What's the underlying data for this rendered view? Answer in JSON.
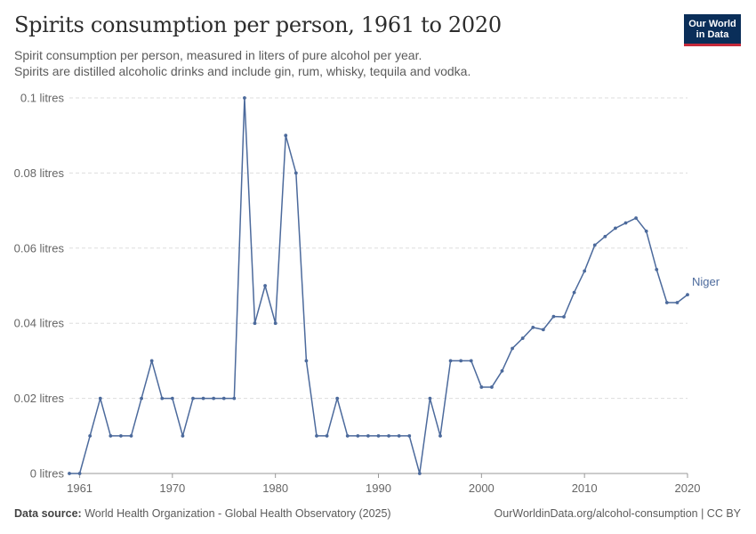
{
  "header": {
    "title": "Spirits consumption per person, 1961 to 2020",
    "subtitle_line1": "Spirit consumption per person, measured in liters of pure alcohol per year.",
    "subtitle_line2": "Spirits are distilled alcoholic drinks and include gin, rum, whisky, tequila and vodka."
  },
  "logo": {
    "line1": "Our World",
    "line2": "in Data"
  },
  "footer": {
    "source_label": "Data source:",
    "source_text": "World Health Organization - Global Health Observatory (2025)",
    "right_text": "OurWorldinData.org/alcohol-consumption | CC BY"
  },
  "colors": {
    "series": "#4c6a9c",
    "grid": "#dddddd",
    "axis": "#999999"
  },
  "chart_data": {
    "type": "line",
    "title": "Spirits consumption per person, 1961 to 2020",
    "xlabel": "",
    "ylabel": "",
    "xlim": [
      1960,
      2020
    ],
    "ylim": [
      0,
      0.1
    ],
    "y_ticks": [
      0,
      0.02,
      0.04,
      0.06,
      0.08,
      0.1
    ],
    "y_tick_labels": [
      "0 litres",
      "0.02 litres",
      "0.04 litres",
      "0.06 litres",
      "0.08 litres",
      "0.1 litres"
    ],
    "x_ticks": [
      1961,
      1970,
      1980,
      1990,
      2000,
      2010,
      2020
    ],
    "x_tick_labels": [
      "1961",
      "1970",
      "1980",
      "1990",
      "2000",
      "2010",
      "2020"
    ],
    "grid": true,
    "series": [
      {
        "name": "Niger",
        "x": [
          1960,
          1961,
          1962,
          1963,
          1964,
          1965,
          1966,
          1967,
          1968,
          1969,
          1970,
          1971,
          1972,
          1973,
          1974,
          1975,
          1976,
          1977,
          1978,
          1979,
          1980,
          1981,
          1982,
          1983,
          1984,
          1985,
          1986,
          1987,
          1988,
          1989,
          1990,
          1991,
          1992,
          1993,
          1994,
          1995,
          1996,
          1997,
          1998,
          1999,
          2000,
          2001,
          2002,
          2003,
          2004,
          2005,
          2006,
          2007,
          2008,
          2009,
          2010,
          2011,
          2012,
          2013,
          2014,
          2015,
          2016,
          2017,
          2018,
          2019,
          2020
        ],
        "values": [
          0,
          0,
          0.01,
          0.02,
          0.01,
          0.01,
          0.01,
          0.02,
          0.03,
          0.02,
          0.02,
          0.01,
          0.02,
          0.02,
          0.02,
          0.02,
          0.02,
          0.1,
          0.04,
          0.05,
          0.04,
          0.09,
          0.08,
          0.03,
          0.01,
          0.01,
          0.02,
          0.01,
          0.01,
          0.01,
          0.01,
          0.01,
          0.01,
          0.01,
          0,
          0.02,
          0.01,
          0.03,
          0.03,
          0.03,
          0.023,
          0.023,
          0.0273,
          0.0333,
          0.036,
          0.0389,
          0.0383,
          0.0418,
          0.0417,
          0.0482,
          0.0539,
          0.0608,
          0.0631,
          0.0653,
          0.0667,
          0.068,
          0.0645,
          0.0543,
          0.0455,
          0.0455,
          0.0476
        ]
      }
    ]
  }
}
